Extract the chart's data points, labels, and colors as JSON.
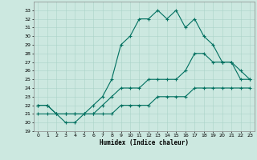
{
  "xlabel": "Humidex (Indice chaleur)",
  "xlim": [
    -0.5,
    23.5
  ],
  "ylim": [
    19,
    34
  ],
  "yticks": [
    19,
    20,
    21,
    22,
    23,
    24,
    25,
    26,
    27,
    28,
    29,
    30,
    31,
    32,
    33
  ],
  "xticks": [
    0,
    1,
    2,
    3,
    4,
    5,
    6,
    7,
    8,
    9,
    10,
    11,
    12,
    13,
    14,
    15,
    16,
    17,
    18,
    19,
    20,
    21,
    22,
    23
  ],
  "bg_color": "#cce8e0",
  "grid_color": "#aad4c8",
  "line_color": "#007060",
  "curve1_x": [
    0,
    1,
    2,
    3,
    4,
    5,
    6,
    7,
    8,
    9,
    10,
    11,
    12,
    13,
    14,
    15,
    16,
    17,
    18,
    19,
    20,
    21,
    22,
    23
  ],
  "curve1_y": [
    22,
    22,
    21,
    20,
    20,
    21,
    22,
    23,
    25,
    29,
    30,
    32,
    32,
    33,
    32,
    33,
    31,
    32,
    30,
    29,
    27,
    27,
    26,
    25
  ],
  "curve2_x": [
    0,
    1,
    2,
    3,
    4,
    5,
    6,
    7,
    8,
    9,
    10,
    11,
    12,
    13,
    14,
    15,
    16,
    17,
    18,
    19,
    20,
    21,
    22,
    23
  ],
  "curve2_y": [
    22,
    22,
    21,
    21,
    21,
    21,
    21,
    22,
    23,
    24,
    24,
    24,
    25,
    25,
    25,
    25,
    26,
    28,
    28,
    27,
    27,
    27,
    25,
    25
  ],
  "curve3_x": [
    0,
    1,
    2,
    3,
    4,
    5,
    6,
    7,
    8,
    9,
    10,
    11,
    12,
    13,
    14,
    15,
    16,
    17,
    18,
    19,
    20,
    21,
    22,
    23
  ],
  "curve3_y": [
    21,
    21,
    21,
    21,
    21,
    21,
    21,
    21,
    21,
    22,
    22,
    22,
    22,
    23,
    23,
    23,
    23,
    24,
    24,
    24,
    24,
    24,
    24,
    24
  ]
}
